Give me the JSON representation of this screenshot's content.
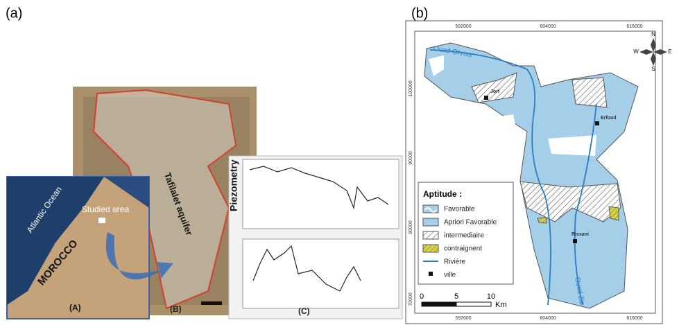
{
  "panel_a": {
    "label": "(a)",
    "satellite": {
      "label": "Tafilalet aquifer",
      "panel": "(B)"
    },
    "inset": {
      "ocean": "Atlantic Ocean",
      "area": "Studied area",
      "country": "MOROCCO",
      "panel": "(A)"
    },
    "graphs": {
      "title": "Piezometry",
      "panel": "(C)"
    }
  },
  "panel_b": {
    "label": "(b)",
    "x_labels": [
      592000,
      604000,
      616000
    ],
    "y_labels": [
      100000,
      90000,
      80000,
      70000
    ],
    "rivers": [
      "Ouad Ghriss",
      "Oued Ziz"
    ],
    "towns": [
      "Jorf",
      "Erfoud",
      "Rissani"
    ],
    "compass": [
      "N",
      "S",
      "E",
      "W"
    ],
    "legend": {
      "title": "Aptitude :",
      "items": [
        "Favorable",
        "Apriori Favorable",
        "intermediaire",
        "contraignent",
        "Rivière",
        "ville"
      ]
    },
    "scale": {
      "ticks": [
        "0",
        "5",
        "10"
      ],
      "unit": "Km"
    }
  }
}
